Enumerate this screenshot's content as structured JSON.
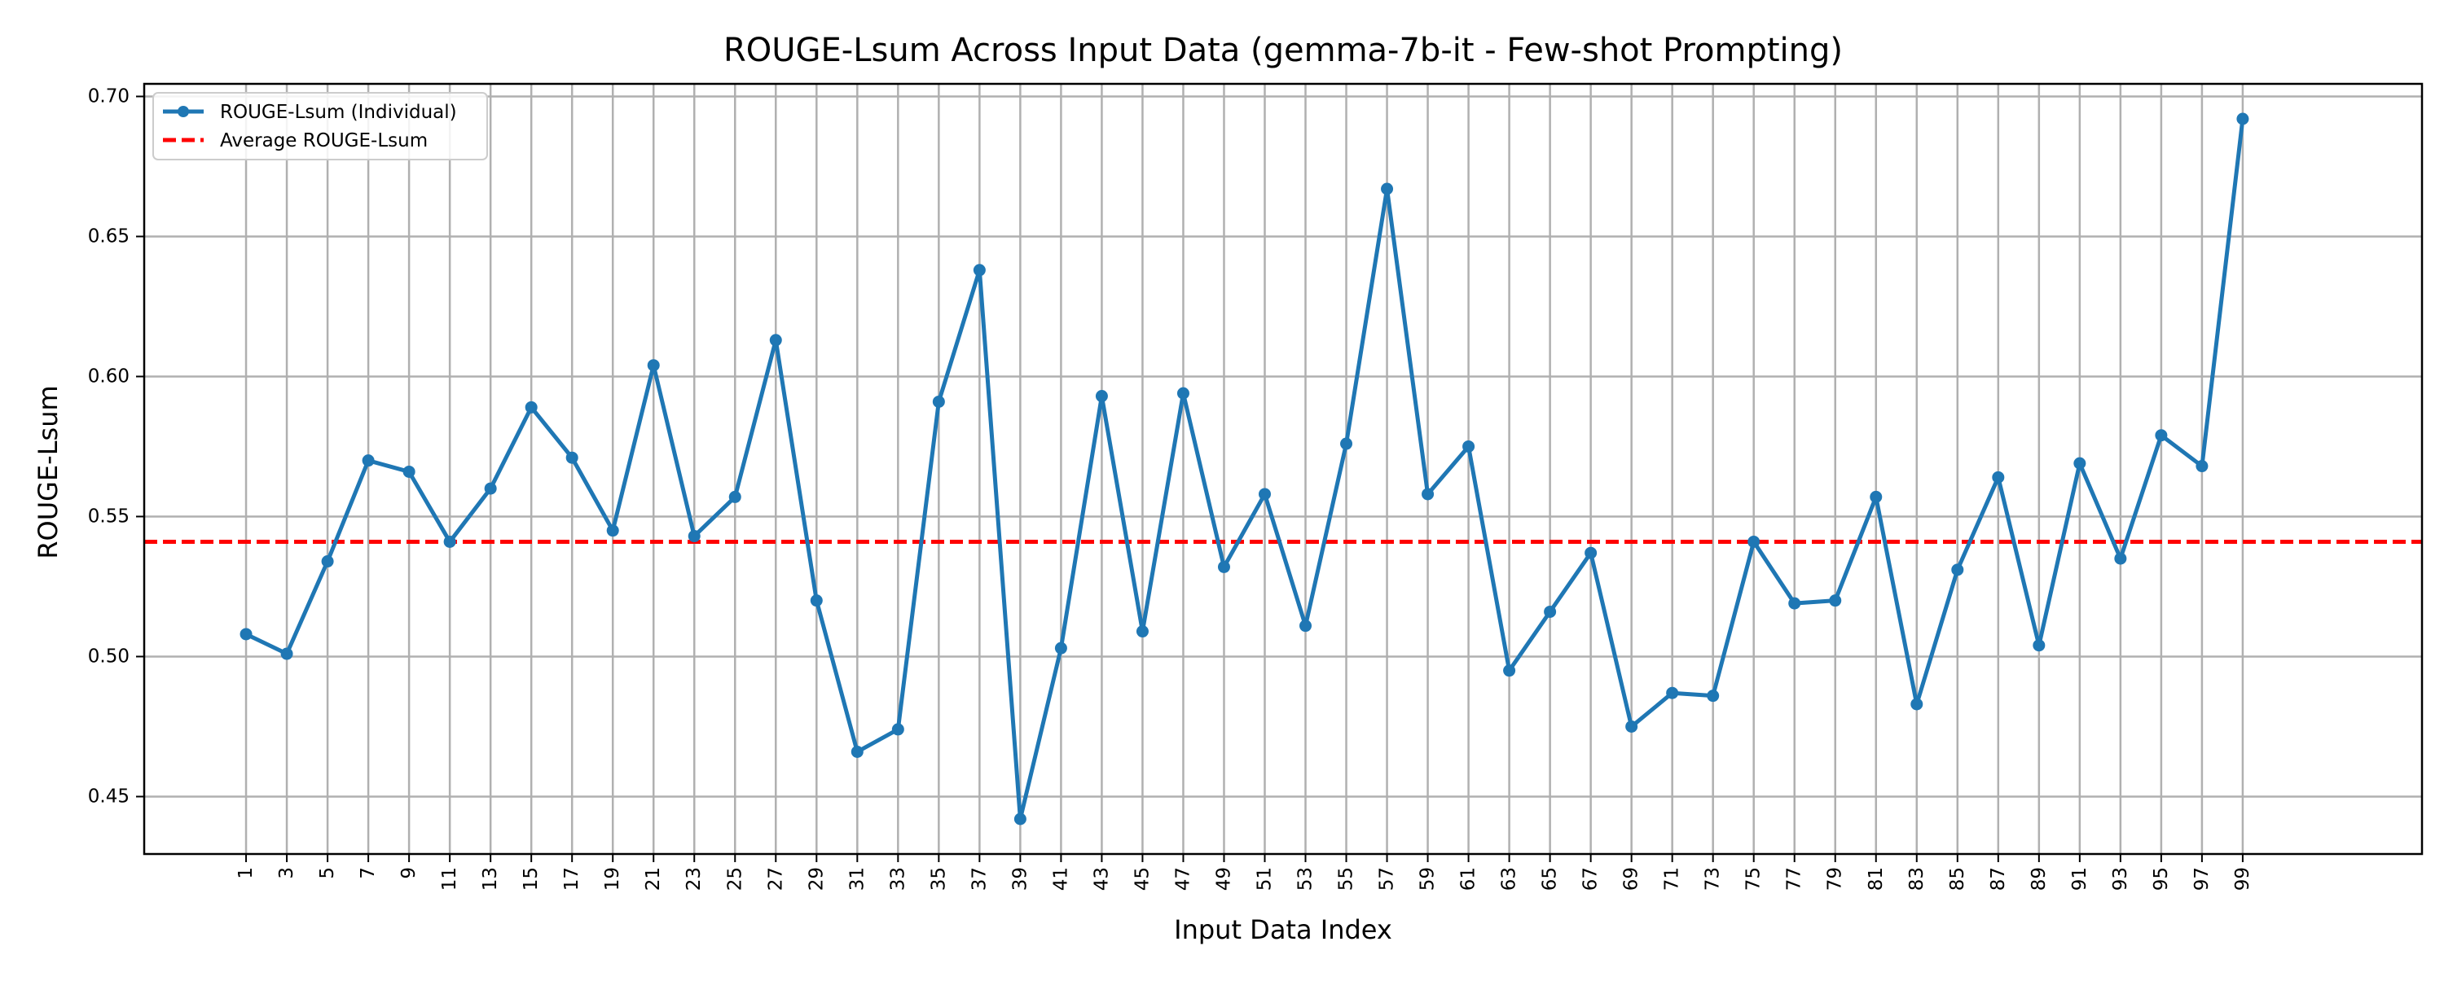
{
  "chart_data": {
    "type": "line",
    "title": "ROUGE-Lsum Across Input Data (gemma-7b-it - Few-shot Prompting)",
    "xlabel": "Input Data Index",
    "ylabel": "ROUGE-Lsum",
    "x": [
      1,
      3,
      5,
      7,
      9,
      11,
      13,
      15,
      17,
      19,
      21,
      23,
      25,
      27,
      29,
      31,
      33,
      35,
      37,
      39,
      41,
      43,
      45,
      47,
      49,
      51,
      53,
      55,
      57,
      59,
      61,
      63,
      65,
      67,
      69,
      71,
      73,
      75,
      77,
      79,
      81,
      83,
      85,
      87,
      89,
      91,
      93,
      95,
      97,
      99
    ],
    "x_tick_labels": [
      "1",
      "3",
      "5",
      "7",
      "9",
      "11",
      "13",
      "15",
      "17",
      "19",
      "21",
      "23",
      "25",
      "27",
      "29",
      "31",
      "33",
      "35",
      "37",
      "39",
      "41",
      "43",
      "45",
      "47",
      "49",
      "51",
      "53",
      "55",
      "57",
      "59",
      "61",
      "63",
      "65",
      "67",
      "69",
      "71",
      "73",
      "75",
      "77",
      "79",
      "81",
      "83",
      "85",
      "87",
      "89",
      "91",
      "93",
      "95",
      "97",
      "99"
    ],
    "y_ticks": [
      0.45,
      0.5,
      0.55,
      0.6,
      0.65,
      0.7
    ],
    "y_tick_labels": [
      "0.45",
      "0.50",
      "0.55",
      "0.60",
      "0.65",
      "0.70"
    ],
    "xlim": [
      -4,
      107.8
    ],
    "ylim": [
      0.4295,
      0.7045
    ],
    "grid": true,
    "legend_position": "top-left",
    "series": [
      {
        "name": "ROUGE-Lsum (Individual)",
        "style": "solid-with-markers",
        "color": "#1f77b4",
        "values": [
          0.508,
          0.501,
          0.534,
          0.57,
          0.566,
          0.541,
          0.56,
          0.589,
          0.571,
          0.545,
          0.604,
          0.543,
          0.557,
          0.613,
          0.52,
          0.466,
          0.474,
          0.591,
          0.638,
          0.442,
          0.503,
          0.593,
          0.509,
          0.594,
          0.532,
          0.558,
          0.511,
          0.576,
          0.667,
          0.558,
          0.575,
          0.495,
          0.516,
          0.537,
          0.475,
          0.487,
          0.486,
          0.541,
          0.519,
          0.52,
          0.557,
          0.483,
          0.531,
          0.564,
          0.504,
          0.569,
          0.535,
          0.579,
          0.568,
          0.692
        ]
      },
      {
        "name": "Average ROUGE-Lsum",
        "style": "dashed",
        "color": "#ff0000",
        "value": 0.541
      }
    ]
  }
}
